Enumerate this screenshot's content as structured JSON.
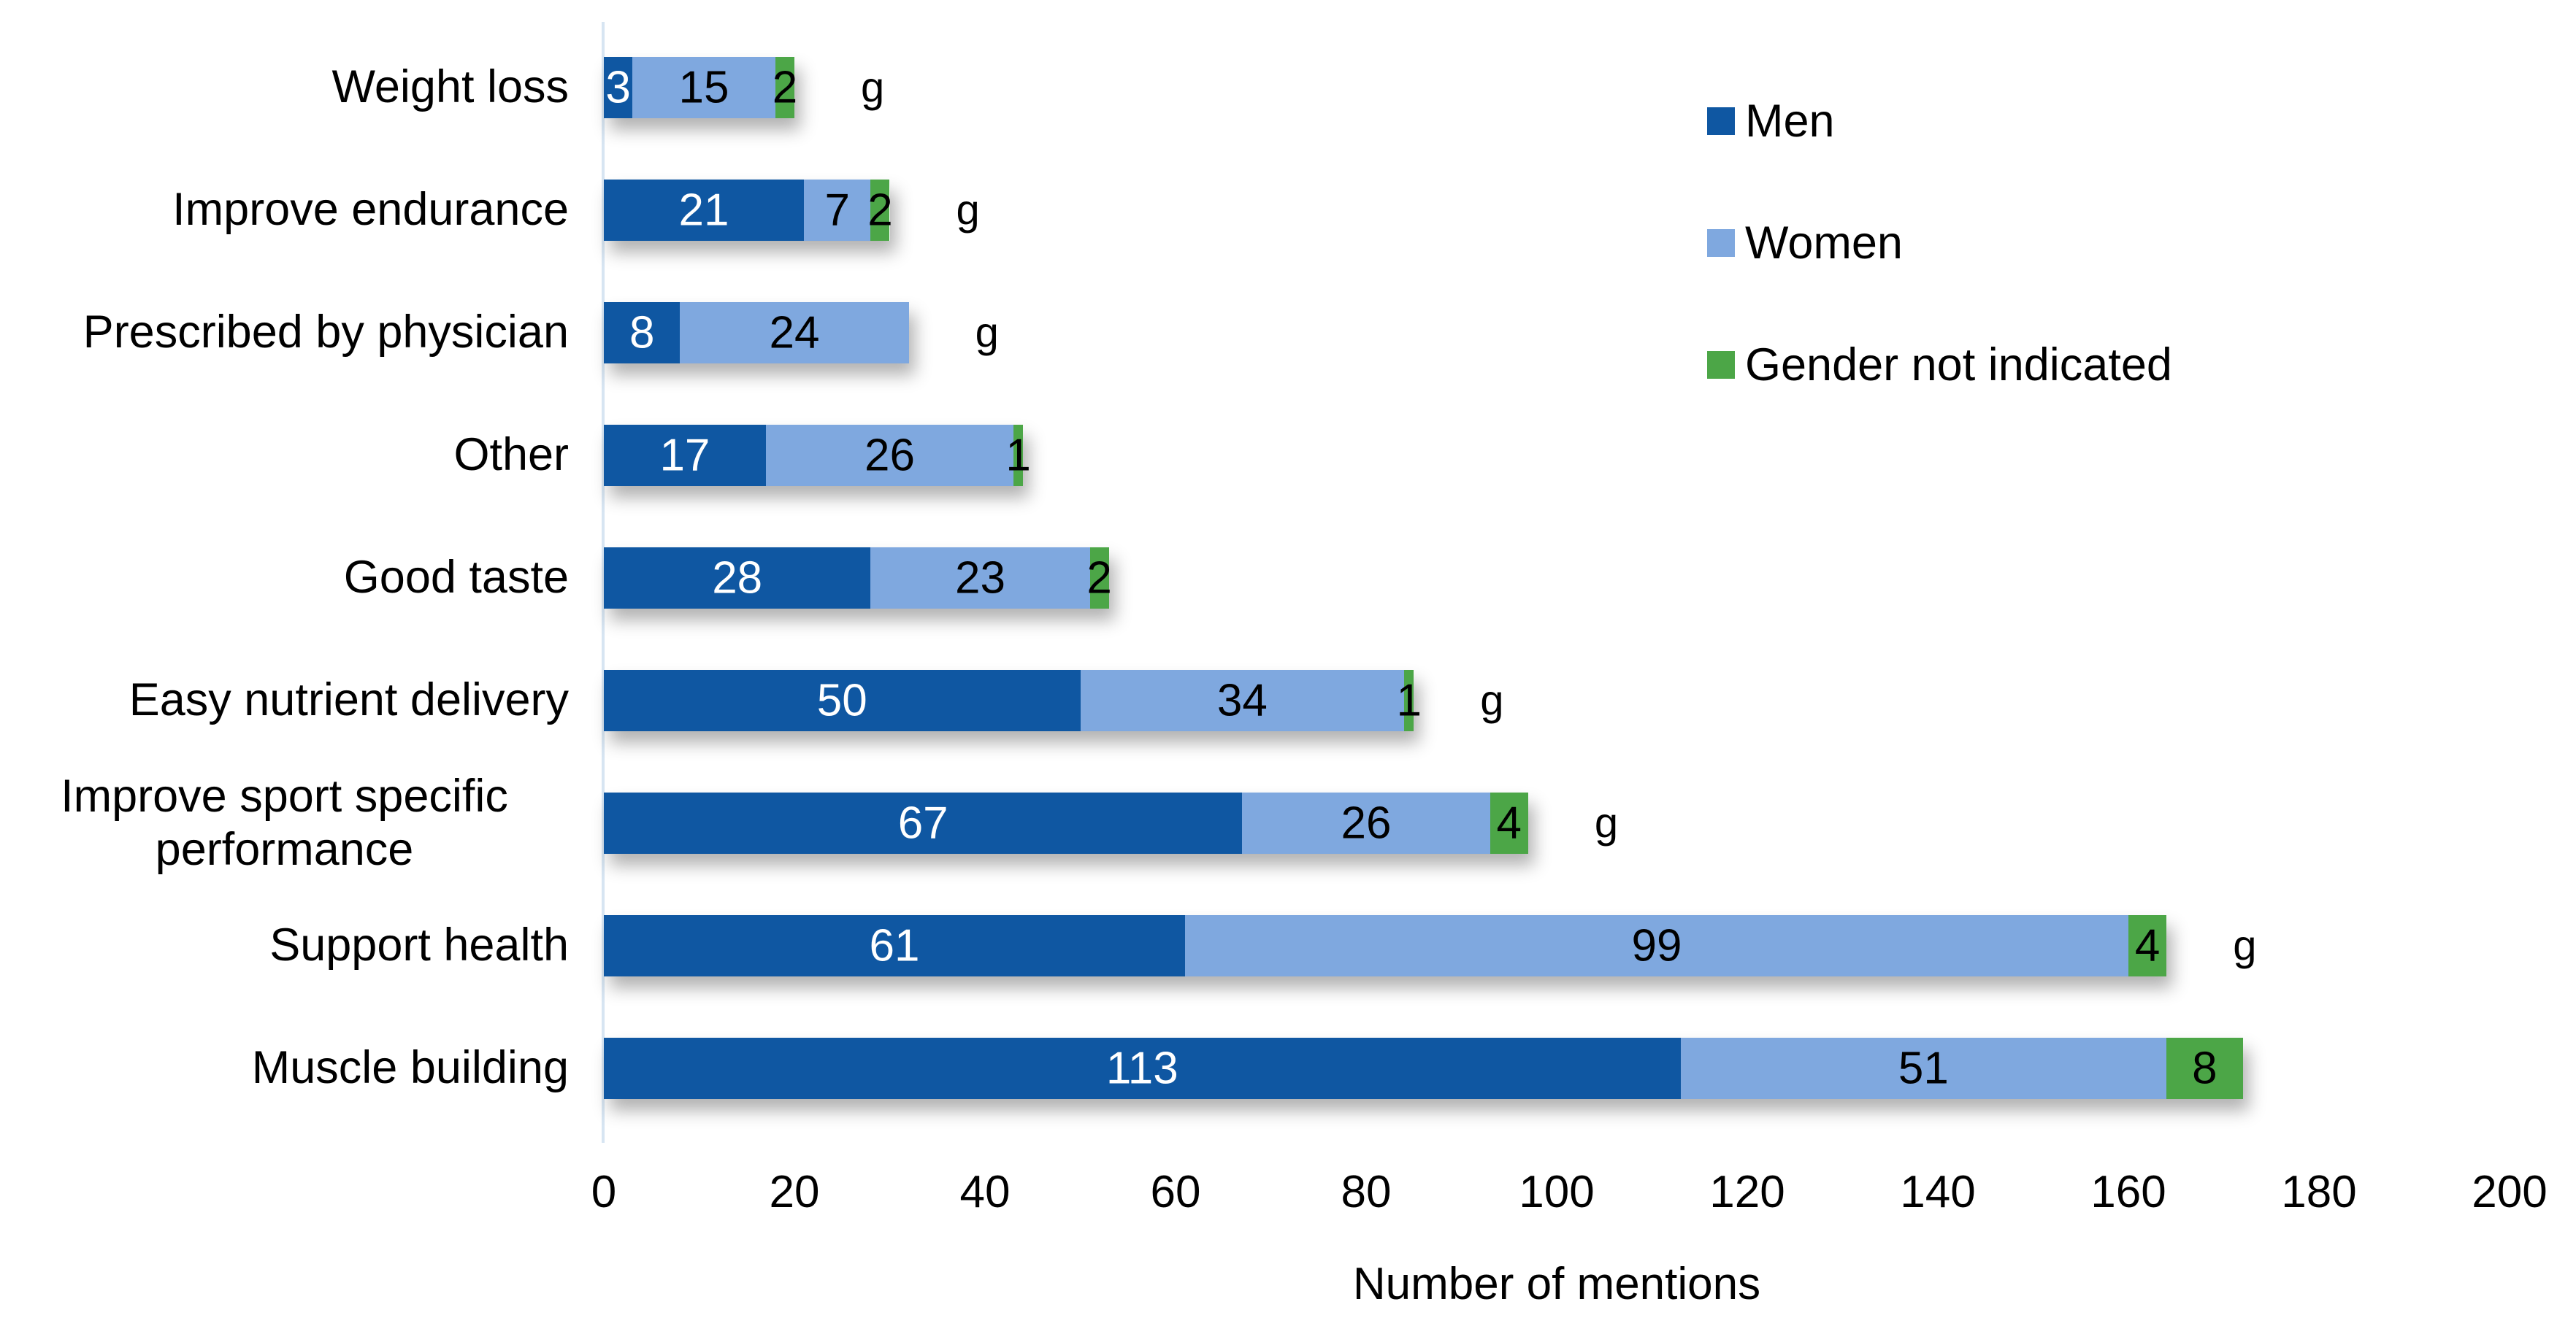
{
  "chart_data": {
    "type": "bar",
    "orientation": "horizontal",
    "stacked": true,
    "categories": [
      "Weight loss",
      "Improve endurance",
      "Prescribed by physician",
      "Other",
      "Good taste",
      "Easy nutrient delivery",
      "Improve sport specific performance",
      "Support health",
      "Muscle building"
    ],
    "series": [
      {
        "name": "Men",
        "color": "#0f57a2",
        "label_color": "#ffffff",
        "values": [
          3,
          21,
          8,
          17,
          28,
          50,
          67,
          61,
          113
        ]
      },
      {
        "name": "Women",
        "color": "#7fa8df",
        "label_color": "#000000",
        "values": [
          15,
          7,
          24,
          26,
          23,
          34,
          26,
          99,
          51
        ]
      },
      {
        "name": "Gender not indicated",
        "color": "#4ca647",
        "label_color": "#000000",
        "values": [
          2,
          2,
          0,
          1,
          2,
          1,
          4,
          4,
          8
        ]
      }
    ],
    "annotations": [
      "g",
      "g",
      "g",
      "",
      "",
      "g",
      "g",
      "g",
      ""
    ],
    "xlabel": "Number of mentions",
    "xlim": [
      0,
      200
    ],
    "xticks": [
      0,
      20,
      40,
      60,
      80,
      100,
      120,
      140,
      160,
      180,
      200
    ],
    "legend_position": "top-right",
    "grid": false,
    "axis_line_color": "#d7e5f2",
    "background_color": "#ffffff"
  }
}
